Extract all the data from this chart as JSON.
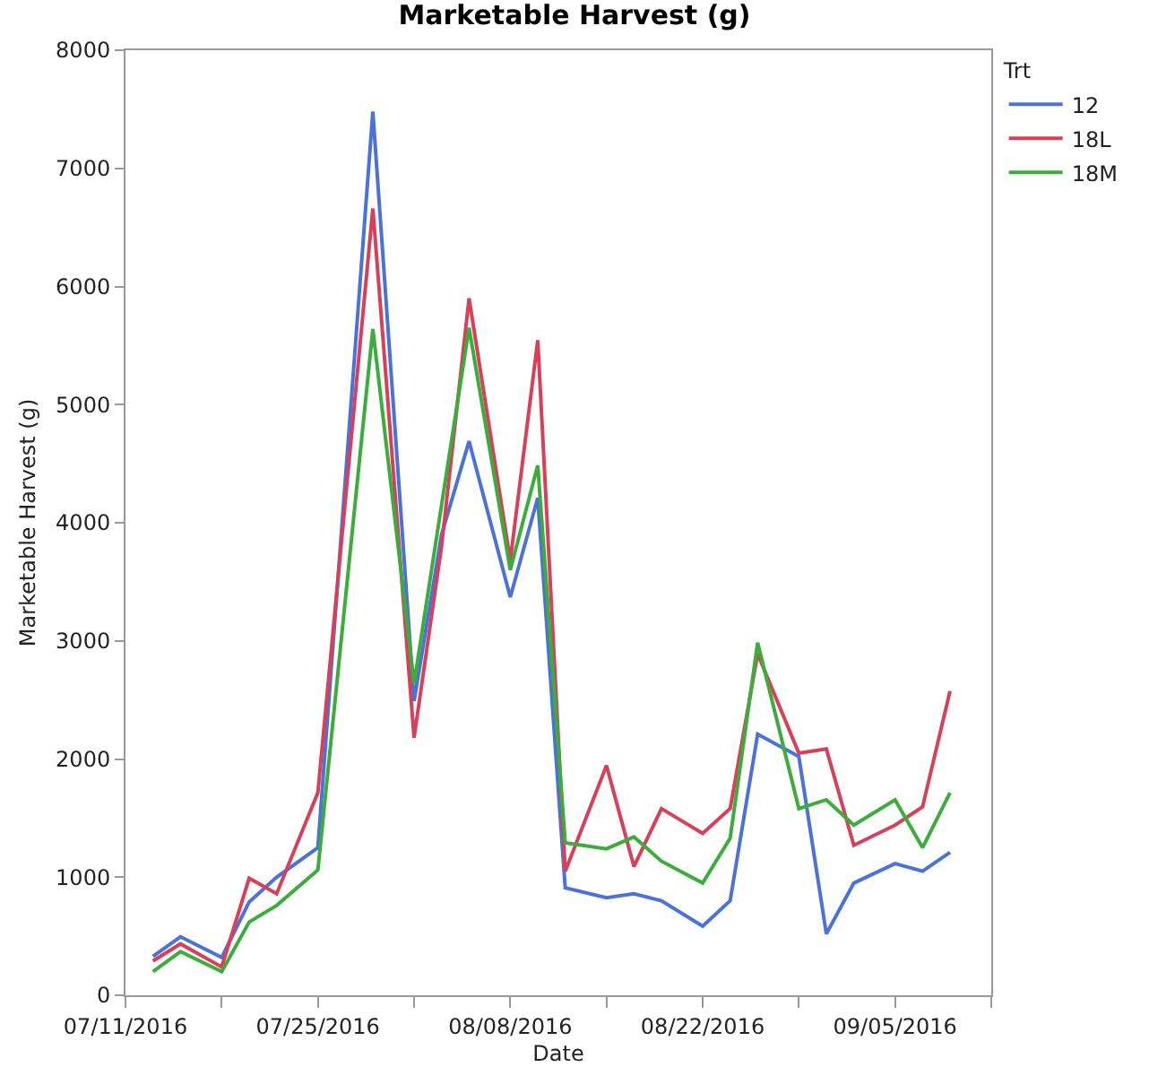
{
  "chart_data": {
    "type": "line",
    "title": "Marketable Harvest (g)",
    "xlabel": "Date",
    "ylabel": "Marketable Harvest (g)",
    "legend_title": "Trt",
    "legend": "right",
    "grid": false,
    "line_style": "solid",
    "marker": "none",
    "x": [
      "2016-07-13",
      "2016-07-15",
      "2016-07-18",
      "2016-07-20",
      "2016-07-22",
      "2016-07-25",
      "2016-07-29",
      "2016-08-01",
      "2016-08-03",
      "2016-08-05",
      "2016-08-08",
      "2016-08-10",
      "2016-08-12",
      "2016-08-15",
      "2016-08-17",
      "2016-08-19",
      "2016-08-22",
      "2016-08-24",
      "2016-08-26",
      "2016-08-29",
      "2016-08-31",
      "2016-09-02",
      "2016-09-05",
      "2016-09-07",
      "2016-09-09"
    ],
    "xlim": [
      "2016-07-11",
      "2016-09-12"
    ],
    "xticks": [
      {
        "value": "2016-07-11",
        "label": "07/11/2016"
      },
      {
        "value": "2016-07-18",
        "label": null
      },
      {
        "value": "2016-07-25",
        "label": "07/25/2016"
      },
      {
        "value": "2016-08-01",
        "label": null
      },
      {
        "value": "2016-08-08",
        "label": "08/08/2016"
      },
      {
        "value": "2016-08-15",
        "label": null
      },
      {
        "value": "2016-08-22",
        "label": "08/22/2016"
      },
      {
        "value": "2016-08-29",
        "label": null
      },
      {
        "value": "2016-09-05",
        "label": "09/05/2016"
      },
      {
        "value": "2016-09-12",
        "label": null
      }
    ],
    "ylim": [
      0,
      8000
    ],
    "yticks": [
      0,
      1000,
      2000,
      3000,
      4000,
      5000,
      6000,
      7000,
      8000
    ],
    "series": [
      {
        "name": "12",
        "color": "#4a72d9",
        "values": [
          330,
          495,
          320,
          790,
          1000,
          1250,
          7480,
          2490,
          3900,
          4690,
          3370,
          4210,
          910,
          825,
          860,
          800,
          585,
          800,
          2210,
          2020,
          520,
          950,
          1115,
          1050,
          1210
        ]
      },
      {
        "name": "18L",
        "color": "#d8405a",
        "values": [
          290,
          435,
          240,
          990,
          860,
          1715,
          6660,
          2180,
          3800,
          5900,
          3680,
          5545,
          1050,
          1945,
          1090,
          1580,
          1370,
          1580,
          2890,
          2050,
          2085,
          1270,
          1440,
          1595,
          2575
        ]
      },
      {
        "name": "18M",
        "color": "#3cad3c",
        "values": [
          200,
          370,
          200,
          620,
          760,
          1060,
          5640,
          2640,
          4150,
          5650,
          3600,
          4485,
          1290,
          1240,
          1340,
          1135,
          950,
          1330,
          2985,
          1580,
          1655,
          1440,
          1655,
          1250,
          1715
        ]
      }
    ]
  }
}
